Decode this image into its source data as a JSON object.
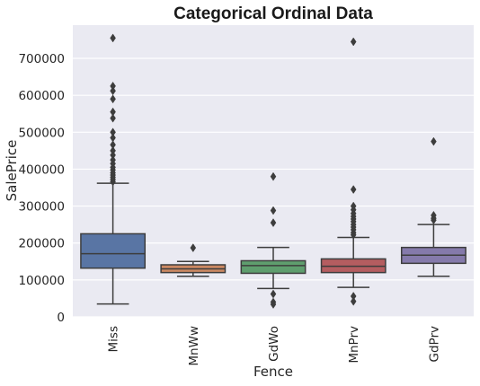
{
  "chart_data": {
    "type": "box",
    "title": "Categorical Ordinal Data",
    "xlabel": "Fence",
    "ylabel": "SalePrice",
    "ylim": [
      0,
      790000
    ],
    "yticks": [
      0,
      100000,
      200000,
      300000,
      400000,
      500000,
      600000,
      700000
    ],
    "ytick_labels": [
      "0",
      "100000",
      "200000",
      "300000",
      "400000",
      "500000",
      "600000",
      "700000"
    ],
    "grid": true,
    "background": "#EAEAF2",
    "categories": [
      "Miss",
      "MnWw",
      "GdWo",
      "MnPrv",
      "GdPrv"
    ],
    "boxes": [
      {
        "category": "Miss",
        "color": "#5975A4",
        "whisker_low": 35000,
        "q1": 132000,
        "median": 171000,
        "q3": 225000,
        "whisker_high": 362000,
        "outliers": [
          755000,
          625000,
          612000,
          590000,
          555000,
          538000,
          500000,
          485000,
          466000,
          450000,
          438000,
          425000,
          415000,
          405000,
          398000,
          390000,
          384000,
          378000,
          372000,
          366000
        ]
      },
      {
        "category": "MnWw",
        "color": "#CC8963",
        "whisker_low": 110000,
        "q1": 120000,
        "median": 130000,
        "q3": 141000,
        "whisker_high": 150000,
        "outliers": [
          187000
        ]
      },
      {
        "category": "GdWo",
        "color": "#5F9E6E",
        "whisker_low": 77000,
        "q1": 118000,
        "median": 139000,
        "q3": 152000,
        "whisker_high": 188000,
        "outliers": [
          380000,
          288000,
          255000,
          62000,
          40000,
          34000
        ]
      },
      {
        "category": "MnPrv",
        "color": "#B55D60",
        "whisker_low": 80000,
        "q1": 120000,
        "median": 137000,
        "q3": 157000,
        "whisker_high": 215000,
        "outliers": [
          745000,
          345000,
          300000,
          290000,
          280000,
          272000,
          265000,
          258000,
          250000,
          243000,
          236000,
          228000,
          222000,
          56000,
          42000
        ]
      },
      {
        "category": "GdPrv",
        "color": "#857AAB",
        "whisker_low": 110000,
        "q1": 145000,
        "median": 167000,
        "q3": 188000,
        "whisker_high": 250000,
        "outliers": [
          475000,
          275000,
          267000,
          262000
        ]
      }
    ]
  }
}
